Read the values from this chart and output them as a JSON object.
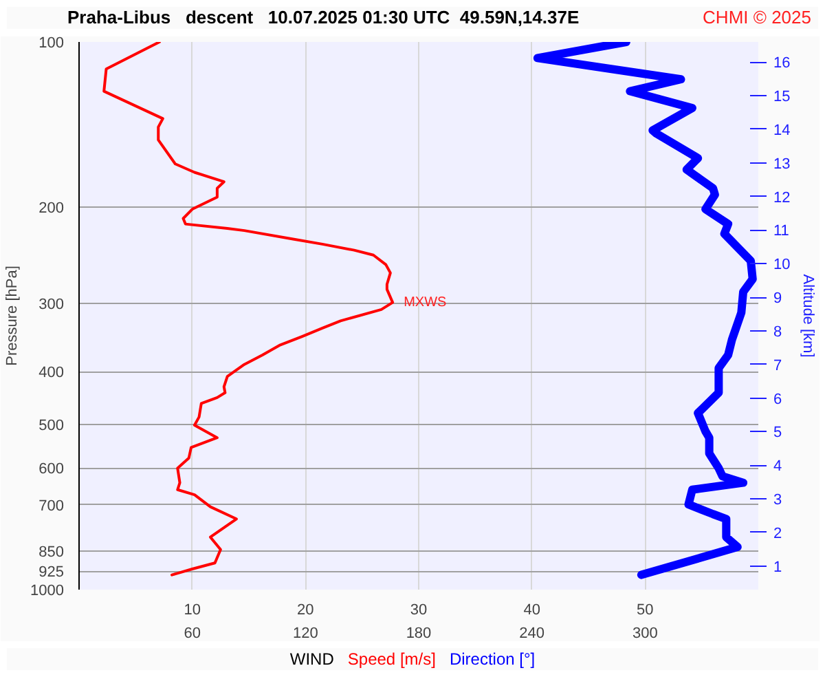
{
  "chart_data": {
    "type": "line",
    "title": "Praha-Libus   descent   10.07.2025 01:30 UTC  49.59N,14.37E",
    "xlabel": "WIND",
    "ylabel": "Pressure [hPa]",
    "y2label": "Altitude [km]",
    "annotations": [
      {
        "text": "MXWS",
        "x": 27.7,
        "y": 299
      },
      "CHMI © 2025"
    ],
    "log": "y",
    "grid": true,
    "xlim": [
      0,
      60
    ],
    "x2lim": [
      0,
      360
    ],
    "ylim": [
      1000,
      100
    ],
    "xticks": [
      10,
      20,
      30,
      40,
      50
    ],
    "x2ticks": [
      60,
      120,
      180,
      240,
      300
    ],
    "yticks": [
      100,
      200,
      300,
      400,
      500,
      600,
      700,
      850,
      925,
      1000
    ],
    "y2lim": [
      0.3,
      16.6
    ],
    "y2ticks": [
      1,
      2,
      3,
      4,
      5,
      6,
      7,
      8,
      9,
      10,
      11,
      12,
      13,
      14,
      15,
      16
    ],
    "series": [
      {
        "name": "Speed [m/s]",
        "color": "#ff0000",
        "x": [
          7.1,
          2.4,
          2.2,
          7.4,
          7.0,
          7.0,
          8.5,
          10.2,
          12.8,
          12.2,
          12.2,
          10.0,
          9.2,
          9.4,
          13.1,
          14.6,
          18.9,
          21.5,
          24.3,
          26.0,
          27.1,
          27.5,
          27.2,
          27.2,
          27.7,
          26.7,
          23.1,
          21.5,
          19.7,
          17.7,
          16.2,
          14.6,
          13.1,
          12.8,
          12.9,
          12.2,
          10.8,
          10.6,
          10.2,
          12.2,
          9.9,
          9.7,
          8.7,
          8.9,
          8.7,
          10.2,
          11.6,
          13.9,
          11.6,
          12.5,
          12.0,
          10.0,
          8.2
        ],
        "values": [
          100,
          112,
          123,
          138,
          143,
          151,
          167,
          173,
          180,
          185,
          192,
          202,
          210,
          215,
          219,
          221,
          229,
          234,
          240,
          245,
          255,
          264,
          277,
          283,
          299,
          308,
          323,
          333,
          345,
          358,
          373,
          388,
          408,
          426,
          437,
          446,
          457,
          484,
          501,
          528,
          550,
          575,
          600,
          638,
          657,
          671,
          706,
          743,
          802,
          845,
          894,
          917,
          940
        ]
      },
      {
        "name": "Direction [°]",
        "color": "#0000ff",
        "axis": "x2",
        "x": [
          290,
          243,
          319,
          292,
          325,
          304,
          306,
          328,
          322,
          336,
          337,
          332,
          344,
          342,
          356,
          357,
          352,
          351,
          346,
          344,
          339,
          339,
          328,
          332,
          334,
          334,
          339,
          341,
          352,
          325,
          323,
          336,
          343,
          343,
          349,
          298
        ],
        "values": [
          100,
          107,
          117,
          123,
          132,
          145,
          147,
          163,
          171,
          185,
          190,
          202,
          215,
          224,
          251,
          271,
          286,
          312,
          350,
          373,
          394,
          437,
          476,
          514,
          528,
          564,
          600,
          621,
          638,
          657,
          699,
          728,
          743,
          802,
          836,
          940
        ]
      }
    ]
  }
}
